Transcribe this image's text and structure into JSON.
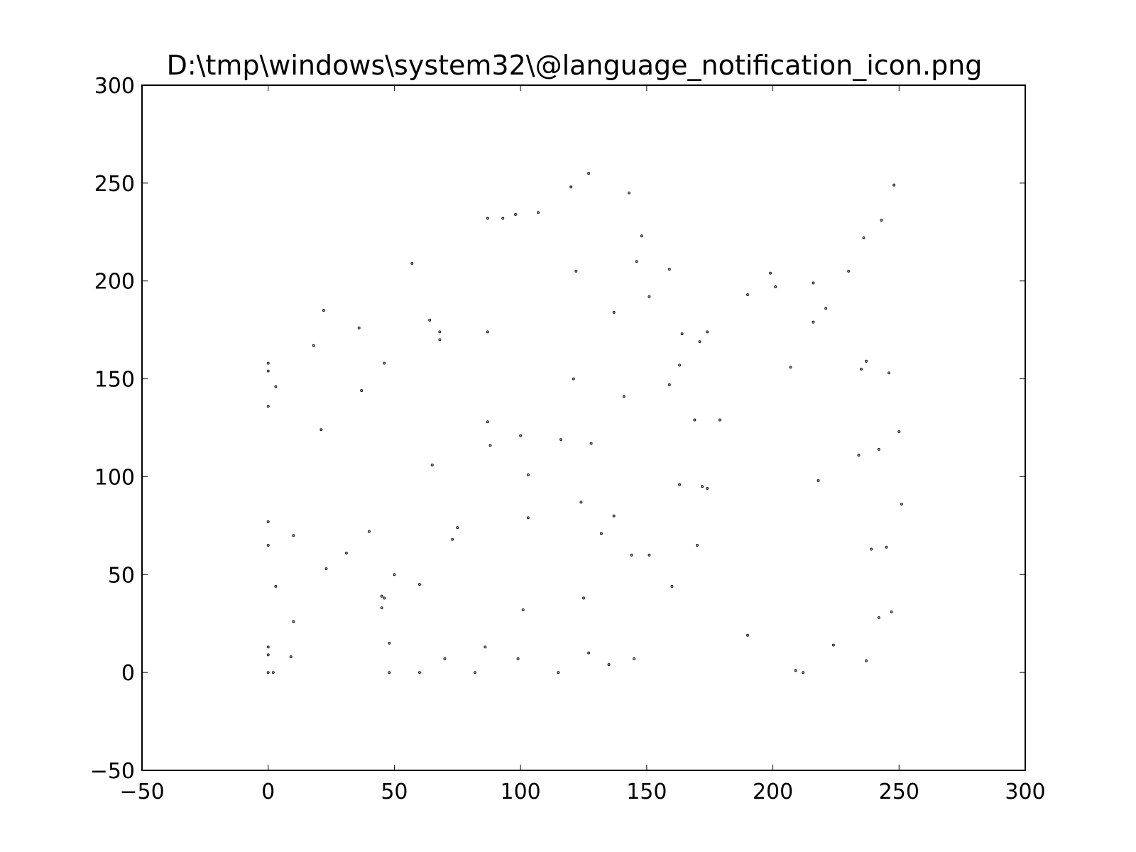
{
  "chart_data": {
    "type": "scatter",
    "title": "D:\\tmp\\windows\\system32\\@language_notification_icon.png",
    "xlabel": "",
    "ylabel": "",
    "xlim": [
      -50,
      300
    ],
    "ylim": [
      -50,
      300
    ],
    "xticks": [
      -50,
      0,
      50,
      100,
      150,
      200,
      250,
      300
    ],
    "yticks": [
      -50,
      0,
      50,
      100,
      150,
      200,
      250,
      300
    ],
    "xtick_labels": [
      "−50",
      "0",
      "50",
      "100",
      "150",
      "200",
      "250",
      "300"
    ],
    "ytick_labels": [
      "−50",
      "0",
      "50",
      "100",
      "150",
      "200",
      "250",
      "300"
    ],
    "grid": false,
    "legend": "none",
    "marker_color": "#000000",
    "points": [
      [
        0,
        0
      ],
      [
        2,
        0
      ],
      [
        0,
        9
      ],
      [
        0,
        13
      ],
      [
        0,
        65
      ],
      [
        0,
        77
      ],
      [
        0,
        136
      ],
      [
        0,
        154
      ],
      [
        0,
        158
      ],
      [
        3,
        146
      ],
      [
        3,
        44
      ],
      [
        9,
        8
      ],
      [
        10,
        26
      ],
      [
        10,
        70
      ],
      [
        18,
        167
      ],
      [
        21,
        124
      ],
      [
        22,
        185
      ],
      [
        23,
        53
      ],
      [
        31,
        61
      ],
      [
        36,
        176
      ],
      [
        37,
        144
      ],
      [
        40,
        72
      ],
      [
        45,
        33
      ],
      [
        45,
        39
      ],
      [
        46,
        38
      ],
      [
        46,
        158
      ],
      [
        48,
        15
      ],
      [
        48,
        0
      ],
      [
        50,
        50
      ],
      [
        57,
        209
      ],
      [
        60,
        45
      ],
      [
        60,
        0
      ],
      [
        64,
        180
      ],
      [
        65,
        106
      ],
      [
        68,
        174
      ],
      [
        68,
        170
      ],
      [
        70,
        7
      ],
      [
        73,
        68
      ],
      [
        75,
        74
      ],
      [
        82,
        0
      ],
      [
        86,
        13
      ],
      [
        87,
        232
      ],
      [
        87,
        174
      ],
      [
        87,
        128
      ],
      [
        88,
        116
      ],
      [
        93,
        232
      ],
      [
        98,
        234
      ],
      [
        99,
        7
      ],
      [
        100,
        121
      ],
      [
        101,
        32
      ],
      [
        103,
        101
      ],
      [
        103,
        79
      ],
      [
        107,
        235
      ],
      [
        115,
        0
      ],
      [
        116,
        119
      ],
      [
        120,
        248
      ],
      [
        121,
        150
      ],
      [
        122,
        205
      ],
      [
        124,
        87
      ],
      [
        125,
        38
      ],
      [
        127,
        255
      ],
      [
        127,
        10
      ],
      [
        128,
        117
      ],
      [
        132,
        71
      ],
      [
        135,
        4
      ],
      [
        137,
        184
      ],
      [
        137,
        80
      ],
      [
        141,
        141
      ],
      [
        143,
        245
      ],
      [
        144,
        60
      ],
      [
        145,
        7
      ],
      [
        146,
        210
      ],
      [
        148,
        223
      ],
      [
        151,
        192
      ],
      [
        151,
        60
      ],
      [
        159,
        206
      ],
      [
        159,
        147
      ],
      [
        160,
        44
      ],
      [
        163,
        157
      ],
      [
        163,
        96
      ],
      [
        164,
        173
      ],
      [
        169,
        129
      ],
      [
        170,
        65
      ],
      [
        171,
        169
      ],
      [
        172,
        95
      ],
      [
        174,
        174
      ],
      [
        174,
        94
      ],
      [
        179,
        129
      ],
      [
        190,
        193
      ],
      [
        190,
        19
      ],
      [
        199,
        204
      ],
      [
        201,
        197
      ],
      [
        207,
        156
      ],
      [
        209,
        1
      ],
      [
        212,
        0
      ],
      [
        216,
        199
      ],
      [
        216,
        179
      ],
      [
        218,
        98
      ],
      [
        221,
        186
      ],
      [
        224,
        14
      ],
      [
        230,
        205
      ],
      [
        234,
        111
      ],
      [
        235,
        155
      ],
      [
        236,
        222
      ],
      [
        237,
        159
      ],
      [
        237,
        6
      ],
      [
        239,
        63
      ],
      [
        242,
        114
      ],
      [
        242,
        28
      ],
      [
        243,
        231
      ],
      [
        245,
        64
      ],
      [
        246,
        153
      ],
      [
        247,
        31
      ],
      [
        248,
        249
      ],
      [
        250,
        123
      ],
      [
        251,
        86
      ]
    ]
  }
}
